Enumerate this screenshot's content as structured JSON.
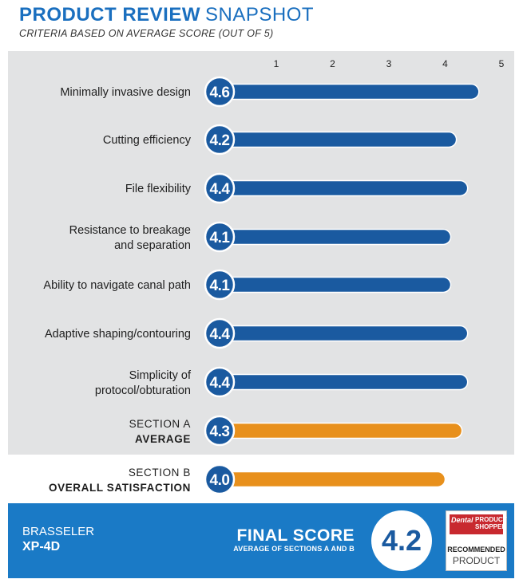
{
  "header": {
    "title_bold": "PRODUCT REVIEW",
    "title_light": "SNAPSHOT",
    "subtitle": "CRITERIA BASED ON AVERAGE SCORE (OUT OF 5)"
  },
  "chart_data": {
    "type": "bar",
    "orientation": "horizontal",
    "xlim": [
      0,
      5
    ],
    "ticks": [
      "1",
      "2",
      "3",
      "4",
      "5"
    ],
    "tick_values": [
      1,
      2,
      3,
      4,
      5
    ],
    "categories": [
      [
        "Minimally invasive design"
      ],
      [
        "Cutting efficiency"
      ],
      [
        "File flexibility"
      ],
      [
        "Resistance to breakage",
        "and separation"
      ],
      [
        "Ability to navigate canal path"
      ],
      [
        "Adaptive shaping/contouring"
      ],
      [
        "Simplicity of",
        "protocol/obturation"
      ],
      [
        "SECTION A",
        "AVERAGE"
      ],
      [
        "SECTION B",
        "OVERALL SATISFACTION"
      ]
    ],
    "values": [
      4.6,
      4.2,
      4.4,
      4.1,
      4.1,
      4.4,
      4.4,
      4.3,
      4.0
    ],
    "value_labels": [
      "4.6",
      "4.2",
      "4.4",
      "4.1",
      "4.1",
      "4.4",
      "4.4",
      "4.3",
      "4.0"
    ],
    "kinds": [
      "criterion",
      "criterion",
      "criterion",
      "criterion",
      "criterion",
      "criterion",
      "criterion",
      "average",
      "average"
    ],
    "colors": {
      "criterion": "#1a5aa0",
      "average": "#e8901c",
      "circle": "#1a5aa0"
    }
  },
  "footer": {
    "brand": "BRASSELER",
    "product": "XP-4D",
    "final_label": "FINAL SCORE",
    "final_sub": "AVERAGE OF SECTIONS A AND B",
    "final_value": "4.2"
  },
  "badge": {
    "dental": "Dental",
    "product_shopper_1": "PRODUCT",
    "product_shopper_2": "SHOPPER",
    "recommended": "RECOMMENDED",
    "product": "PRODUCT"
  }
}
